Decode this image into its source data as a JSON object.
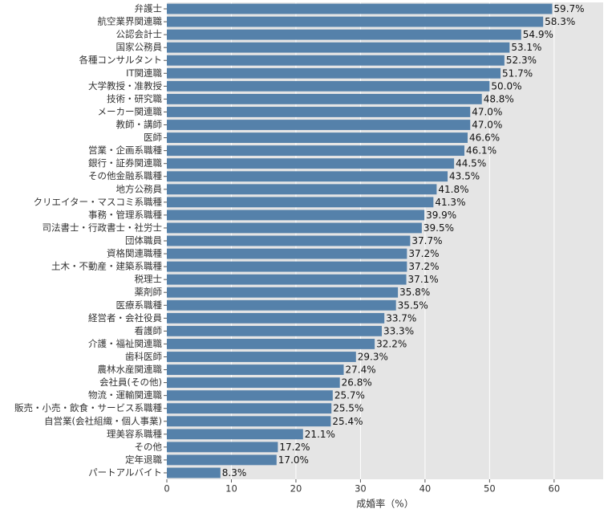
{
  "chart_data": {
    "type": "barh",
    "xlabel": "成婚率（%）",
    "categories": [
      "弁護士",
      "航空業界関連職",
      "公認会計士",
      "国家公務員",
      "各種コンサルタント",
      "IT関連職",
      "大学教授・准教授",
      "技術・研究職",
      "メーカー関連職",
      "教師・講師",
      "医師",
      "営業・企画系職種",
      "銀行・証券関連職",
      "その他金融系職種",
      "地方公務員",
      "クリエイター・マスコミ系職種",
      "事務・管理系職種",
      "司法書士・行政書士・社労士",
      "団体職員",
      "資格関連職種",
      "土木・不動産・建築系職種",
      "税理士",
      "薬剤師",
      "医療系職種",
      "経営者・会社役員",
      "看護師",
      "介護・福祉関連職",
      "歯科医師",
      "農林水産関連職",
      "会社員(その他)",
      "物流・運輸関連職",
      "販売・小売・飲食・サービス系職種",
      "自営業(会社組織・個人事業)",
      "理美容系職種",
      "その他",
      "定年退職",
      "パートアルバイト"
    ],
    "values": [
      59.7,
      58.3,
      54.9,
      53.1,
      52.3,
      51.7,
      50.0,
      48.8,
      47.0,
      47.0,
      46.6,
      46.1,
      44.5,
      43.5,
      41.8,
      41.3,
      39.9,
      39.5,
      37.7,
      37.2,
      37.2,
      37.1,
      35.8,
      35.5,
      33.7,
      33.3,
      32.2,
      29.3,
      27.4,
      26.8,
      25.7,
      25.5,
      25.4,
      21.1,
      17.2,
      17.0,
      8.3
    ],
    "value_labels": [
      "59.7%",
      "58.3%",
      "54.9%",
      "53.1%",
      "52.3%",
      "51.7%",
      "50.0%",
      "48.8%",
      "47.0%",
      "47.0%",
      "46.6%",
      "46.1%",
      "44.5%",
      "43.5%",
      "41.8%",
      "41.3%",
      "39.9%",
      "39.5%",
      "37.7%",
      "37.2%",
      "37.2%",
      "37.1%",
      "35.8%",
      "35.5%",
      "33.7%",
      "33.3%",
      "32.2%",
      "29.3%",
      "27.4%",
      "26.8%",
      "25.7%",
      "25.5%",
      "25.4%",
      "21.1%",
      "17.2%",
      "17.0%",
      "8.3%"
    ],
    "color": "#5581aa",
    "xlim": [
      0,
      67.6
    ],
    "xticks": [
      0,
      10,
      20,
      30,
      40,
      50,
      60
    ],
    "grid": true
  }
}
